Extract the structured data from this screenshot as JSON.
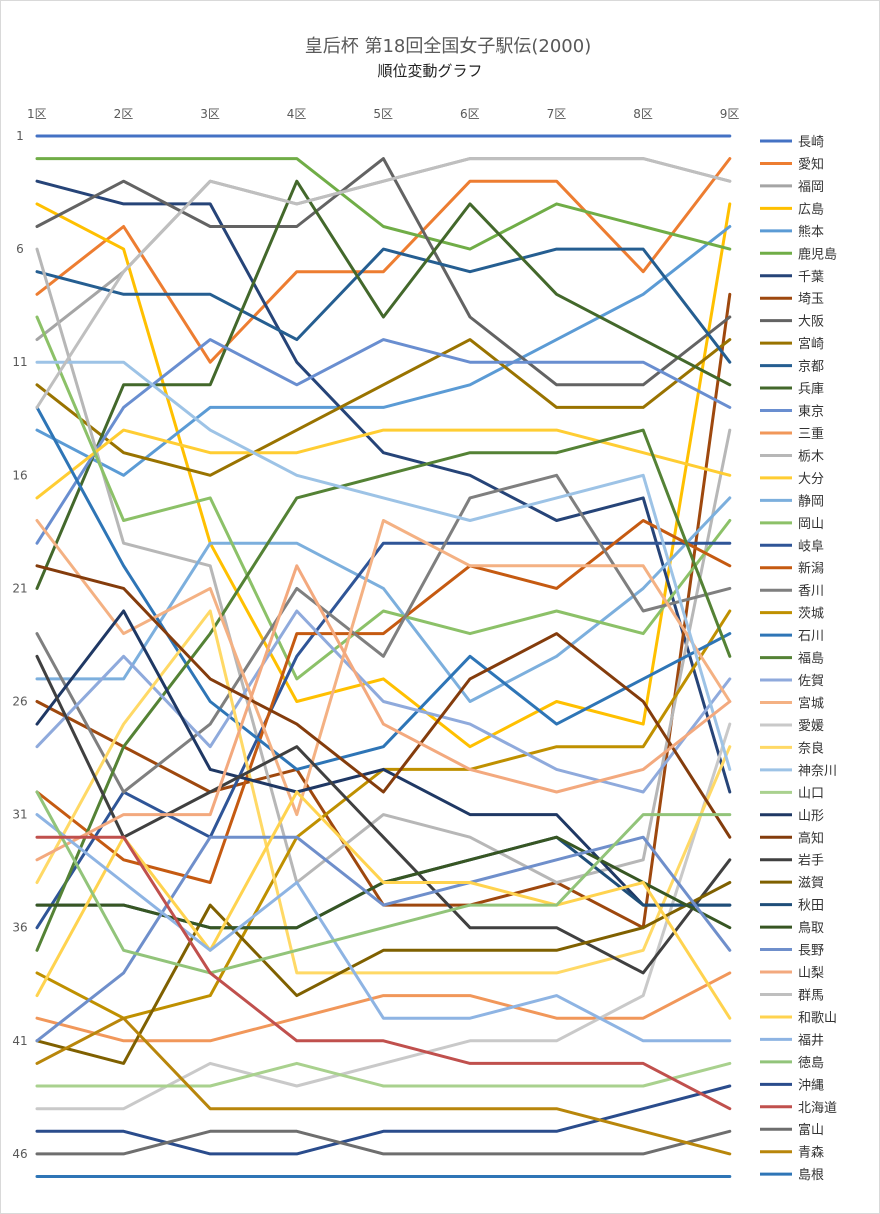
{
  "chart_data": {
    "type": "line",
    "title": "皇后杯 第18回全国女子駅伝(2000)",
    "subtitle": "順位変動グラフ",
    "categories": [
      "1区",
      "2区",
      "3区",
      "4区",
      "5区",
      "6区",
      "7区",
      "8区",
      "9区"
    ],
    "y_ticks": [
      1,
      6,
      11,
      16,
      21,
      26,
      31,
      36,
      41,
      46
    ],
    "ylim": [
      1,
      47
    ],
    "y_inverted": true,
    "grid": false,
    "legend_position": "right",
    "series": [
      {
        "name": "長崎",
        "color": "#4472C4",
        "values": [
          1,
          1,
          1,
          1,
          1,
          1,
          1,
          1,
          1
        ]
      },
      {
        "name": "愛知",
        "color": "#ED7D31",
        "values": [
          8,
          5,
          11,
          7,
          7,
          3,
          3,
          7,
          2
        ]
      },
      {
        "name": "福岡",
        "color": "#A5A5A5",
        "values": [
          10,
          7,
          3,
          4,
          3,
          2,
          2,
          2,
          3
        ]
      },
      {
        "name": "広島",
        "color": "#FFC000",
        "values": [
          4,
          6,
          19,
          26,
          25,
          28,
          26,
          27,
          4
        ]
      },
      {
        "name": "熊本",
        "color": "#5B9BD5",
        "values": [
          14,
          16,
          13,
          13,
          13,
          12,
          10,
          8,
          5
        ]
      },
      {
        "name": "鹿児島",
        "color": "#70AD47",
        "values": [
          2,
          2,
          2,
          2,
          5,
          6,
          4,
          5,
          6
        ]
      },
      {
        "name": "千葉",
        "color": "#264478",
        "values": [
          3,
          4,
          4,
          11,
          15,
          16,
          18,
          17,
          30
        ]
      },
      {
        "name": "埼玉",
        "color": "#9E480E",
        "values": [
          26,
          28,
          30,
          29,
          35,
          35,
          34,
          36,
          8
        ]
      },
      {
        "name": "大阪",
        "color": "#636363",
        "values": [
          5,
          3,
          5,
          5,
          2,
          9,
          12,
          12,
          9
        ]
      },
      {
        "name": "宮崎",
        "color": "#997300",
        "values": [
          12,
          15,
          16,
          14,
          12,
          10,
          13,
          13,
          10
        ]
      },
      {
        "name": "京都",
        "color": "#255E91",
        "values": [
          7,
          8,
          8,
          10,
          6,
          7,
          6,
          6,
          11
        ]
      },
      {
        "name": "兵庫",
        "color": "#43682B",
        "values": [
          21,
          12,
          12,
          3,
          9,
          4,
          8,
          10,
          12
        ]
      },
      {
        "name": "東京",
        "color": "#698ED0",
        "values": [
          19,
          13,
          10,
          12,
          10,
          11,
          11,
          11,
          13
        ]
      },
      {
        "name": "三重",
        "color": "#F1975A",
        "values": [
          40,
          41,
          41,
          40,
          39,
          39,
          40,
          40,
          38
        ]
      },
      {
        "name": "栃木",
        "color": "#B7B7B7",
        "values": [
          6,
          19,
          20,
          34,
          31,
          32,
          34,
          33,
          14
        ]
      },
      {
        "name": "大分",
        "color": "#FFCD33",
        "values": [
          17,
          14,
          15,
          15,
          14,
          14,
          14,
          15,
          16
        ]
      },
      {
        "name": "静岡",
        "color": "#7CAFDD",
        "values": [
          25,
          25,
          19,
          19,
          21,
          26,
          24,
          21,
          17
        ]
      },
      {
        "name": "岡山",
        "color": "#8CC168",
        "values": [
          9,
          18,
          17,
          25,
          22,
          23,
          22,
          23,
          18
        ]
      },
      {
        "name": "岐阜",
        "color": "#2F5597",
        "values": [
          36,
          30,
          32,
          24,
          19,
          19,
          19,
          19,
          19
        ]
      },
      {
        "name": "新潟",
        "color": "#C55A11",
        "values": [
          30,
          33,
          34,
          23,
          23,
          20,
          21,
          18,
          20
        ]
      },
      {
        "name": "香川",
        "color": "#7F7F7F",
        "values": [
          23,
          30,
          27,
          21,
          24,
          17,
          16,
          22,
          21
        ]
      },
      {
        "name": "茨城",
        "color": "#BF9000",
        "values": [
          38,
          40,
          39,
          32,
          29,
          29,
          28,
          28,
          22
        ]
      },
      {
        "name": "石川",
        "color": "#2E75B6",
        "values": [
          13,
          20,
          26,
          29,
          28,
          24,
          27,
          25,
          23
        ]
      },
      {
        "name": "福島",
        "color": "#548235",
        "values": [
          37,
          28,
          23,
          17,
          16,
          15,
          15,
          14,
          24
        ]
      },
      {
        "name": "佐賀",
        "color": "#8FAADC",
        "values": [
          28,
          24,
          28,
          22,
          26,
          27,
          29,
          30,
          25
        ]
      },
      {
        "name": "宮城",
        "color": "#F4B183",
        "values": [
          18,
          23,
          21,
          31,
          18,
          20,
          20,
          20,
          26
        ]
      },
      {
        "name": "愛媛",
        "color": "#C9C9C9",
        "values": [
          44,
          44,
          42,
          43,
          42,
          41,
          41,
          39,
          27
        ]
      },
      {
        "name": "奈良",
        "color": "#FFD966",
        "values": [
          34,
          27,
          22,
          38,
          38,
          38,
          38,
          37,
          28
        ]
      },
      {
        "name": "神奈川",
        "color": "#9DC3E6",
        "values": [
          11,
          11,
          14,
          16,
          17,
          18,
          17,
          16,
          29
        ]
      },
      {
        "name": "山口",
        "color": "#A9D18E",
        "values": [
          43,
          43,
          43,
          42,
          43,
          43,
          43,
          43,
          42
        ]
      },
      {
        "name": "山形",
        "color": "#1F3864",
        "values": [
          27,
          22,
          29,
          30,
          29,
          31,
          31,
          35,
          35
        ]
      },
      {
        "name": "高知",
        "color": "#843C0C",
        "values": [
          20,
          21,
          25,
          27,
          30,
          25,
          23,
          26,
          32
        ]
      },
      {
        "name": "岩手",
        "color": "#404040",
        "values": [
          24,
          32,
          30,
          28,
          32,
          36,
          36,
          38,
          33
        ]
      },
      {
        "name": "滋賀",
        "color": "#7F6000",
        "values": [
          41,
          42,
          35,
          39,
          37,
          37,
          37,
          36,
          34
        ]
      },
      {
        "name": "秋田",
        "color": "#1F4E79",
        "values": [
          35,
          35,
          36,
          36,
          34,
          33,
          32,
          35,
          35
        ]
      },
      {
        "name": "鳥取",
        "color": "#375623",
        "values": [
          35,
          35,
          36,
          36,
          34,
          33,
          32,
          34,
          36
        ]
      },
      {
        "name": "長野",
        "color": "#6F8FCB",
        "values": [
          41,
          38,
          32,
          32,
          35,
          34,
          33,
          32,
          37
        ]
      },
      {
        "name": "山梨",
        "color": "#F3A97E",
        "values": [
          33,
          31,
          31,
          20,
          27,
          29,
          30,
          29,
          26
        ]
      },
      {
        "name": "群馬",
        "color": "#BFBFBF",
        "values": [
          13,
          7,
          3,
          4,
          3,
          2,
          2,
          2,
          3
        ]
      },
      {
        "name": "和歌山",
        "color": "#FFD34F",
        "values": [
          39,
          32,
          37,
          30,
          34,
          34,
          35,
          34,
          40
        ]
      },
      {
        "name": "福井",
        "color": "#8EB4E3",
        "values": [
          31,
          34,
          37,
          34,
          40,
          40,
          39,
          41,
          41
        ]
      },
      {
        "name": "徳島",
        "color": "#92C47A",
        "values": [
          30,
          37,
          38,
          37,
          36,
          35,
          35,
          31,
          31
        ]
      },
      {
        "name": "沖縄",
        "color": "#2A4C8C",
        "values": [
          45,
          45,
          46,
          46,
          45,
          45,
          45,
          44,
          43
        ]
      },
      {
        "name": "北海道",
        "color": "#C0504D",
        "values": [
          32,
          32,
          38,
          41,
          41,
          42,
          42,
          42,
          44
        ]
      },
      {
        "name": "富山",
        "color": "#6E6E6E",
        "values": [
          46,
          46,
          45,
          45,
          46,
          46,
          46,
          46,
          45
        ]
      },
      {
        "name": "青森",
        "color": "#B8860B",
        "values": [
          42,
          40,
          44,
          44,
          44,
          44,
          44,
          45,
          46
        ]
      },
      {
        "name": "島根",
        "color": "#2E75B6",
        "values": [
          47,
          47,
          47,
          47,
          47,
          47,
          47,
          47,
          47
        ]
      }
    ]
  }
}
